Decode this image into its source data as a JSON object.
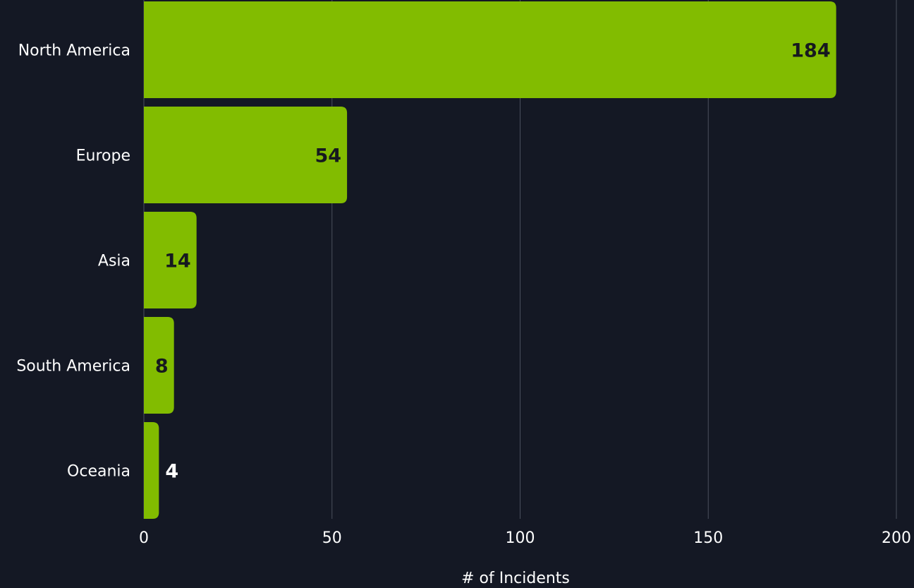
{
  "chart_data": {
    "type": "bar",
    "orientation": "horizontal",
    "categories": [
      "North America",
      "Europe",
      "Asia",
      "South America",
      "Oceania"
    ],
    "values": [
      184,
      54,
      14,
      8,
      4
    ],
    "title": "",
    "xlabel": "# of Incidents",
    "ylabel": "",
    "xlim": [
      0,
      200
    ],
    "xticks": [
      0,
      50,
      100,
      150,
      200
    ],
    "grid": "vertical",
    "legend": "none",
    "colors": {
      "background": "#141824",
      "bar": "#82bc00",
      "grid": "#4a4f5c",
      "text": "#ffffff",
      "label_inside": "#16191f",
      "label_outside": "#ffffff"
    }
  }
}
